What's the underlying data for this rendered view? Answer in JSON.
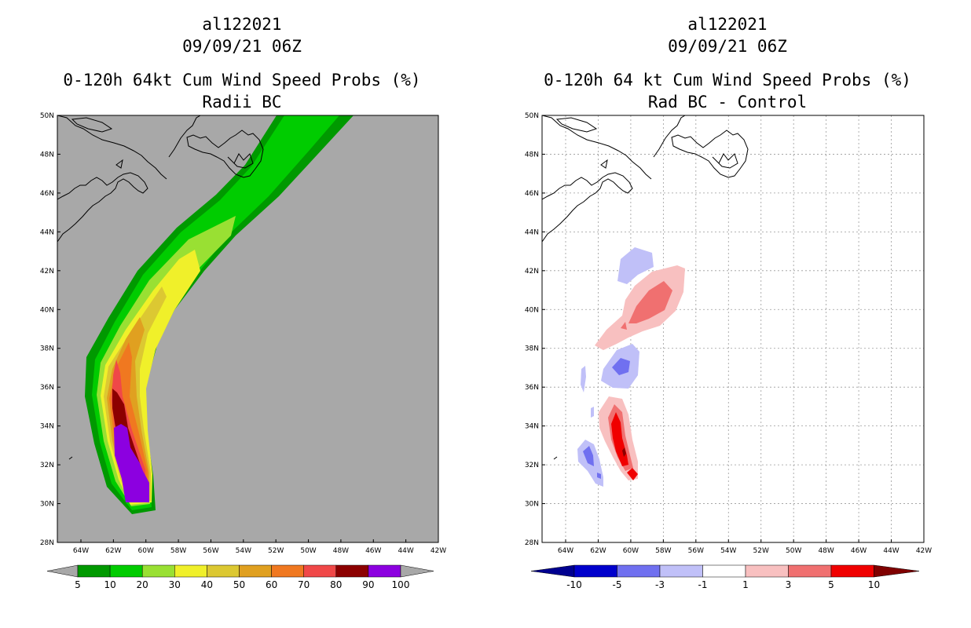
{
  "maps": [
    {
      "id": "left",
      "storm_id": "al122021",
      "datetime": "09/09/21 06Z",
      "title": "0-120h 64kt Cum Wind Speed Probs (%)",
      "subtitle": "Radii BC",
      "lat_labels": [
        "50N",
        "48N",
        "46N",
        "44N",
        "42N",
        "40N",
        "38N",
        "36N",
        "34N",
        "32N",
        "30N",
        "28N"
      ],
      "lon_labels": [
        "64W",
        "62W",
        "60W",
        "58W",
        "56W",
        "54W",
        "52W",
        "50W",
        "48W",
        "46W",
        "44W",
        "42W"
      ],
      "colorbar_labels": [
        "5",
        "10",
        "20",
        "30",
        "40",
        "50",
        "60",
        "70",
        "80",
        "90",
        "100"
      ],
      "colorbar_colors": [
        "#009900",
        "#00cc00",
        "#99e033",
        "#f0f02a",
        "#dcc832",
        "#e0a020",
        "#f07820",
        "#f04848",
        "#8c0000",
        "#8c00e0"
      ],
      "background": "#a8a8a8"
    },
    {
      "id": "right",
      "storm_id": "al122021",
      "datetime": "09/09/21 06Z",
      "title": "0-120h 64 kt Cum Wind Speed Probs (%)",
      "subtitle": "Rad BC - Control",
      "lat_labels": [
        "50N",
        "48N",
        "46N",
        "44N",
        "42N",
        "40N",
        "38N",
        "36N",
        "34N",
        "32N",
        "30N",
        "28N"
      ],
      "lon_labels": [
        "64W",
        "62W",
        "60W",
        "58W",
        "56W",
        "54W",
        "52W",
        "50W",
        "48W",
        "46W",
        "44W",
        "42W"
      ],
      "colorbar_labels": [
        "-10",
        "-5",
        "-3",
        "-1",
        "1",
        "3",
        "5",
        "10"
      ],
      "colorbar_colors": [
        "#0000cc",
        "#7070f0",
        "#c0c0f8",
        "#ffffff",
        "#f8c0c0",
        "#f07070",
        "#f00000"
      ],
      "colorbar_arrow_colors": [
        "#000090",
        "#800000"
      ],
      "background": "#ffffff"
    }
  ]
}
